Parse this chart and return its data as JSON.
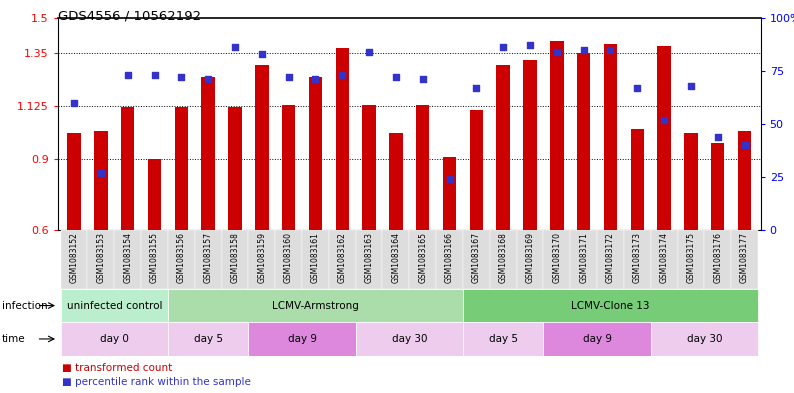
{
  "title": "GDS4556 / 10562192",
  "samples": [
    "GSM1083152",
    "GSM1083153",
    "GSM1083154",
    "GSM1083155",
    "GSM1083156",
    "GSM1083157",
    "GSM1083158",
    "GSM1083159",
    "GSM1083160",
    "GSM1083161",
    "GSM1083162",
    "GSM1083163",
    "GSM1083164",
    "GSM1083165",
    "GSM1083166",
    "GSM1083167",
    "GSM1083168",
    "GSM1083169",
    "GSM1083170",
    "GSM1083171",
    "GSM1083172",
    "GSM1083173",
    "GSM1083174",
    "GSM1083175",
    "GSM1083176",
    "GSM1083177"
  ],
  "bar_values": [
    1.01,
    1.02,
    1.12,
    0.9,
    1.12,
    1.25,
    1.12,
    1.3,
    1.13,
    1.25,
    1.37,
    1.13,
    1.01,
    1.13,
    0.91,
    1.11,
    1.3,
    1.32,
    1.4,
    1.35,
    1.39,
    1.03,
    1.38,
    1.01,
    0.97,
    1.02
  ],
  "percentile_values": [
    60,
    27,
    73,
    73,
    72,
    71,
    86,
    83,
    72,
    71,
    73,
    84,
    72,
    71,
    24,
    67,
    86,
    87,
    84,
    85,
    85,
    67,
    52,
    68,
    44,
    40
  ],
  "ylim_left": [
    0.6,
    1.5
  ],
  "ylim_right": [
    0,
    100
  ],
  "yticks_left": [
    0.6,
    0.9,
    1.125,
    1.35,
    1.5
  ],
  "ytick_labels_left": [
    "0.6",
    "0.9",
    "1.125",
    "1.35",
    "1.5"
  ],
  "yticks_right": [
    0,
    25,
    50,
    75,
    100
  ],
  "ytick_labels_right": [
    "0",
    "25",
    "50",
    "75",
    "100%"
  ],
  "bar_color": "#cc0000",
  "dot_color": "#3333cc",
  "infection_row": [
    {
      "label": "uninfected control",
      "start": 0,
      "end": 4,
      "color": "#bbeecc"
    },
    {
      "label": "LCMV-Armstrong",
      "start": 4,
      "end": 15,
      "color": "#aaddaa"
    },
    {
      "label": "LCMV-Clone 13",
      "start": 15,
      "end": 26,
      "color": "#77cc77"
    }
  ],
  "time_row": [
    {
      "label": "day 0",
      "start": 0,
      "end": 4,
      "color": "#eeccee"
    },
    {
      "label": "day 5",
      "start": 4,
      "end": 7,
      "color": "#eeccee"
    },
    {
      "label": "day 9",
      "start": 7,
      "end": 11,
      "color": "#dd88dd"
    },
    {
      "label": "day 30",
      "start": 11,
      "end": 15,
      "color": "#eeccee"
    },
    {
      "label": "day 5",
      "start": 15,
      "end": 18,
      "color": "#eeccee"
    },
    {
      "label": "day 9",
      "start": 18,
      "end": 22,
      "color": "#dd88dd"
    },
    {
      "label": "day 30",
      "start": 22,
      "end": 26,
      "color": "#eeccee"
    }
  ],
  "xtick_bg": "#dddddd",
  "label_color_infection": "black",
  "label_color_time": "black"
}
